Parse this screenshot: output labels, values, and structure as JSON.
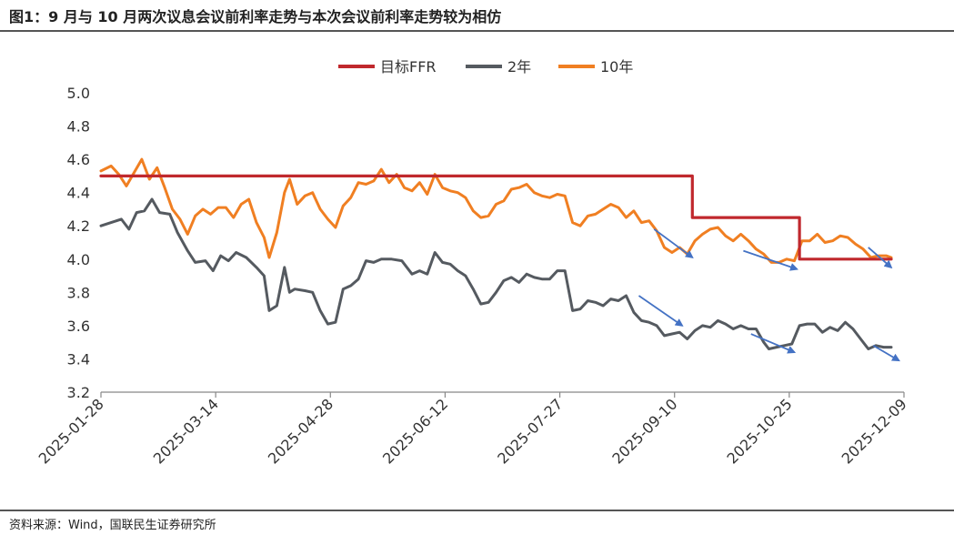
{
  "title": "图1：9 月与 10 月两次议息会议前利率走势与本次会议前利率走势较为相仿",
  "source": "资料来源：Wind，国联民生证券研究所",
  "chart_data": {
    "type": "line",
    "title": "图1：9 月与 10 月两次议息会议前利率走势与本次会议前利率走势较为相仿",
    "xlabel": "",
    "ylabel": "",
    "ylim": [
      3.2,
      5.0
    ],
    "yticks": [
      "5.0",
      "4.8",
      "4.6",
      "4.4",
      "4.2",
      "4.0",
      "3.8",
      "3.6",
      "3.4",
      "3.2"
    ],
    "xticks": [
      "2025-01-28",
      "2025-03-14",
      "2025-04-28",
      "2025-06-12",
      "2025-07-27",
      "2025-09-10",
      "2025-10-25",
      "2025-12-09"
    ],
    "x_start": "2025-01-28",
    "x_end": "2025-12-09",
    "legend": [
      "目标FFR",
      "2年",
      "10年"
    ],
    "legend_position": "top-center",
    "colors": {
      "ffr": "#c0282d",
      "y2": "#555a60",
      "y10": "#f07f22",
      "arrow": "#4472c4"
    },
    "series": [
      {
        "name": "目标FFR",
        "step": true,
        "points": [
          [
            "2025-01-28",
            4.5
          ],
          [
            "2025-09-17",
            4.5
          ],
          [
            "2025-09-17",
            4.25
          ],
          [
            "2025-10-29",
            4.25
          ],
          [
            "2025-10-29",
            4.0
          ],
          [
            "2025-12-04",
            4.0
          ]
        ]
      },
      {
        "name": "2年",
        "points": [
          [
            "2025-01-28",
            4.2
          ],
          [
            "2025-02-01",
            4.22
          ],
          [
            "2025-02-05",
            4.24
          ],
          [
            "2025-02-08",
            4.18
          ],
          [
            "2025-02-11",
            4.28
          ],
          [
            "2025-02-14",
            4.29
          ],
          [
            "2025-02-17",
            4.36
          ],
          [
            "2025-02-20",
            4.28
          ],
          [
            "2025-02-24",
            4.27
          ],
          [
            "2025-02-27",
            4.16
          ],
          [
            "2025-03-03",
            4.05
          ],
          [
            "2025-03-06",
            3.98
          ],
          [
            "2025-03-10",
            3.99
          ],
          [
            "2025-03-13",
            3.93
          ],
          [
            "2025-03-16",
            4.02
          ],
          [
            "2025-03-19",
            3.99
          ],
          [
            "2025-03-22",
            4.04
          ],
          [
            "2025-03-26",
            4.01
          ],
          [
            "2025-03-30",
            3.95
          ],
          [
            "2025-04-02",
            3.9
          ],
          [
            "2025-04-04",
            3.69
          ],
          [
            "2025-04-07",
            3.72
          ],
          [
            "2025-04-10",
            3.95
          ],
          [
            "2025-04-12",
            3.8
          ],
          [
            "2025-04-14",
            3.82
          ],
          [
            "2025-04-18",
            3.81
          ],
          [
            "2025-04-21",
            3.8
          ],
          [
            "2025-04-24",
            3.69
          ],
          [
            "2025-04-27",
            3.61
          ],
          [
            "2025-04-30",
            3.62
          ],
          [
            "2025-05-03",
            3.82
          ],
          [
            "2025-05-06",
            3.84
          ],
          [
            "2025-05-09",
            3.88
          ],
          [
            "2025-05-12",
            3.99
          ],
          [
            "2025-05-15",
            3.98
          ],
          [
            "2025-05-18",
            4.0
          ],
          [
            "2025-05-22",
            4.0
          ],
          [
            "2025-05-26",
            3.99
          ],
          [
            "2025-05-30",
            3.91
          ],
          [
            "2025-06-02",
            3.93
          ],
          [
            "2025-06-05",
            3.91
          ],
          [
            "2025-06-08",
            4.04
          ],
          [
            "2025-06-11",
            3.98
          ],
          [
            "2025-06-14",
            3.97
          ],
          [
            "2025-06-17",
            3.93
          ],
          [
            "2025-06-20",
            3.9
          ],
          [
            "2025-06-23",
            3.82
          ],
          [
            "2025-06-26",
            3.73
          ],
          [
            "2025-06-29",
            3.74
          ],
          [
            "2025-07-02",
            3.8
          ],
          [
            "2025-07-05",
            3.87
          ],
          [
            "2025-07-08",
            3.89
          ],
          [
            "2025-07-11",
            3.86
          ],
          [
            "2025-07-14",
            3.91
          ],
          [
            "2025-07-17",
            3.89
          ],
          [
            "2025-07-20",
            3.88
          ],
          [
            "2025-07-23",
            3.88
          ],
          [
            "2025-07-26",
            3.93
          ],
          [
            "2025-07-29",
            3.93
          ],
          [
            "2025-08-01",
            3.69
          ],
          [
            "2025-08-04",
            3.7
          ],
          [
            "2025-08-07",
            3.75
          ],
          [
            "2025-08-10",
            3.74
          ],
          [
            "2025-08-13",
            3.72
          ],
          [
            "2025-08-16",
            3.76
          ],
          [
            "2025-08-19",
            3.75
          ],
          [
            "2025-08-22",
            3.78
          ],
          [
            "2025-08-25",
            3.68
          ],
          [
            "2025-08-28",
            3.63
          ],
          [
            "2025-08-31",
            3.62
          ],
          [
            "2025-09-03",
            3.6
          ],
          [
            "2025-09-06",
            3.54
          ],
          [
            "2025-09-09",
            3.55
          ],
          [
            "2025-09-12",
            3.56
          ],
          [
            "2025-09-15",
            3.52
          ],
          [
            "2025-09-18",
            3.57
          ],
          [
            "2025-09-21",
            3.6
          ],
          [
            "2025-09-24",
            3.59
          ],
          [
            "2025-09-27",
            3.63
          ],
          [
            "2025-09-30",
            3.61
          ],
          [
            "2025-10-03",
            3.58
          ],
          [
            "2025-10-06",
            3.6
          ],
          [
            "2025-10-09",
            3.58
          ],
          [
            "2025-10-12",
            3.58
          ],
          [
            "2025-10-15",
            3.5
          ],
          [
            "2025-10-17",
            3.46
          ],
          [
            "2025-10-20",
            3.47
          ],
          [
            "2025-10-23",
            3.48
          ],
          [
            "2025-10-26",
            3.49
          ],
          [
            "2025-10-29",
            3.6
          ],
          [
            "2025-11-01",
            3.61
          ],
          [
            "2025-11-04",
            3.61
          ],
          [
            "2025-11-07",
            3.56
          ],
          [
            "2025-11-10",
            3.59
          ],
          [
            "2025-11-13",
            3.57
          ],
          [
            "2025-11-16",
            3.62
          ],
          [
            "2025-11-19",
            3.58
          ],
          [
            "2025-11-22",
            3.52
          ],
          [
            "2025-11-25",
            3.46
          ],
          [
            "2025-11-28",
            3.48
          ],
          [
            "2025-12-01",
            3.47
          ],
          [
            "2025-12-04",
            3.47
          ]
        ]
      },
      {
        "name": "10年",
        "points": [
          [
            "2025-01-28",
            4.53
          ],
          [
            "2025-02-01",
            4.56
          ],
          [
            "2025-02-04",
            4.51
          ],
          [
            "2025-02-07",
            4.44
          ],
          [
            "2025-02-10",
            4.52
          ],
          [
            "2025-02-13",
            4.6
          ],
          [
            "2025-02-16",
            4.48
          ],
          [
            "2025-02-19",
            4.55
          ],
          [
            "2025-02-22",
            4.43
          ],
          [
            "2025-02-25",
            4.3
          ],
          [
            "2025-02-28",
            4.24
          ],
          [
            "2025-03-03",
            4.15
          ],
          [
            "2025-03-06",
            4.26
          ],
          [
            "2025-03-09",
            4.3
          ],
          [
            "2025-03-12",
            4.27
          ],
          [
            "2025-03-15",
            4.31
          ],
          [
            "2025-03-18",
            4.31
          ],
          [
            "2025-03-21",
            4.25
          ],
          [
            "2025-03-24",
            4.33
          ],
          [
            "2025-03-27",
            4.36
          ],
          [
            "2025-03-30",
            4.22
          ],
          [
            "2025-04-02",
            4.13
          ],
          [
            "2025-04-04",
            4.01
          ],
          [
            "2025-04-07",
            4.16
          ],
          [
            "2025-04-10",
            4.4
          ],
          [
            "2025-04-12",
            4.48
          ],
          [
            "2025-04-15",
            4.33
          ],
          [
            "2025-04-18",
            4.38
          ],
          [
            "2025-04-21",
            4.4
          ],
          [
            "2025-04-24",
            4.3
          ],
          [
            "2025-04-27",
            4.24
          ],
          [
            "2025-04-30",
            4.19
          ],
          [
            "2025-05-03",
            4.32
          ],
          [
            "2025-05-06",
            4.37
          ],
          [
            "2025-05-09",
            4.46
          ],
          [
            "2025-05-12",
            4.45
          ],
          [
            "2025-05-15",
            4.47
          ],
          [
            "2025-05-18",
            4.54
          ],
          [
            "2025-05-21",
            4.46
          ],
          [
            "2025-05-24",
            4.51
          ],
          [
            "2025-05-27",
            4.43
          ],
          [
            "2025-05-30",
            4.41
          ],
          [
            "2025-06-02",
            4.46
          ],
          [
            "2025-06-05",
            4.39
          ],
          [
            "2025-06-08",
            4.51
          ],
          [
            "2025-06-11",
            4.43
          ],
          [
            "2025-06-14",
            4.41
          ],
          [
            "2025-06-17",
            4.4
          ],
          [
            "2025-06-20",
            4.37
          ],
          [
            "2025-06-23",
            4.29
          ],
          [
            "2025-06-26",
            4.25
          ],
          [
            "2025-06-29",
            4.26
          ],
          [
            "2025-07-02",
            4.33
          ],
          [
            "2025-07-05",
            4.35
          ],
          [
            "2025-07-08",
            4.42
          ],
          [
            "2025-07-11",
            4.43
          ],
          [
            "2025-07-14",
            4.45
          ],
          [
            "2025-07-17",
            4.4
          ],
          [
            "2025-07-20",
            4.38
          ],
          [
            "2025-07-23",
            4.37
          ],
          [
            "2025-07-26",
            4.39
          ],
          [
            "2025-07-29",
            4.38
          ],
          [
            "2025-08-01",
            4.22
          ],
          [
            "2025-08-04",
            4.2
          ],
          [
            "2025-08-07",
            4.26
          ],
          [
            "2025-08-10",
            4.27
          ],
          [
            "2025-08-13",
            4.3
          ],
          [
            "2025-08-16",
            4.33
          ],
          [
            "2025-08-19",
            4.31
          ],
          [
            "2025-08-22",
            4.25
          ],
          [
            "2025-08-25",
            4.29
          ],
          [
            "2025-08-28",
            4.22
          ],
          [
            "2025-08-31",
            4.23
          ],
          [
            "2025-09-03",
            4.17
          ],
          [
            "2025-09-06",
            4.07
          ],
          [
            "2025-09-09",
            4.04
          ],
          [
            "2025-09-12",
            4.07
          ],
          [
            "2025-09-15",
            4.03
          ],
          [
            "2025-09-18",
            4.11
          ],
          [
            "2025-09-21",
            4.15
          ],
          [
            "2025-09-24",
            4.18
          ],
          [
            "2025-09-27",
            4.19
          ],
          [
            "2025-09-30",
            4.14
          ],
          [
            "2025-10-03",
            4.11
          ],
          [
            "2025-10-06",
            4.15
          ],
          [
            "2025-10-09",
            4.11
          ],
          [
            "2025-10-12",
            4.06
          ],
          [
            "2025-10-15",
            4.03
          ],
          [
            "2025-10-18",
            3.98
          ],
          [
            "2025-10-21",
            3.98
          ],
          [
            "2025-10-24",
            4.0
          ],
          [
            "2025-10-27",
            3.99
          ],
          [
            "2025-10-30",
            4.11
          ],
          [
            "2025-11-02",
            4.11
          ],
          [
            "2025-11-05",
            4.15
          ],
          [
            "2025-11-08",
            4.1
          ],
          [
            "2025-11-11",
            4.11
          ],
          [
            "2025-11-14",
            4.14
          ],
          [
            "2025-11-17",
            4.13
          ],
          [
            "2025-11-20",
            4.09
          ],
          [
            "2025-11-23",
            4.06
          ],
          [
            "2025-11-26",
            4.01
          ],
          [
            "2025-11-29",
            4.02
          ],
          [
            "2025-12-02",
            4.02
          ],
          [
            "2025-12-04",
            4.01
          ]
        ]
      }
    ],
    "annotations": [
      {
        "type": "arrow",
        "series": "10年",
        "from": [
          "2025-09-02",
          4.18
        ],
        "to": [
          "2025-09-17",
          4.01
        ]
      },
      {
        "type": "arrow",
        "series": "10年",
        "from": [
          "2025-10-07",
          4.05
        ],
        "to": [
          "2025-10-28",
          3.94
        ]
      },
      {
        "type": "arrow",
        "series": "10年",
        "from": [
          "2025-11-25",
          4.07
        ],
        "to": [
          "2025-12-04",
          3.95
        ]
      },
      {
        "type": "arrow",
        "series": "2年",
        "from": [
          "2025-08-27",
          3.78
        ],
        "to": [
          "2025-09-13",
          3.6
        ]
      },
      {
        "type": "arrow",
        "series": "2年",
        "from": [
          "2025-10-10",
          3.55
        ],
        "to": [
          "2025-10-27",
          3.44
        ]
      },
      {
        "type": "arrow",
        "series": "2年",
        "from": [
          "2025-11-27",
          3.48
        ],
        "to": [
          "2025-12-07",
          3.39
        ]
      }
    ]
  }
}
